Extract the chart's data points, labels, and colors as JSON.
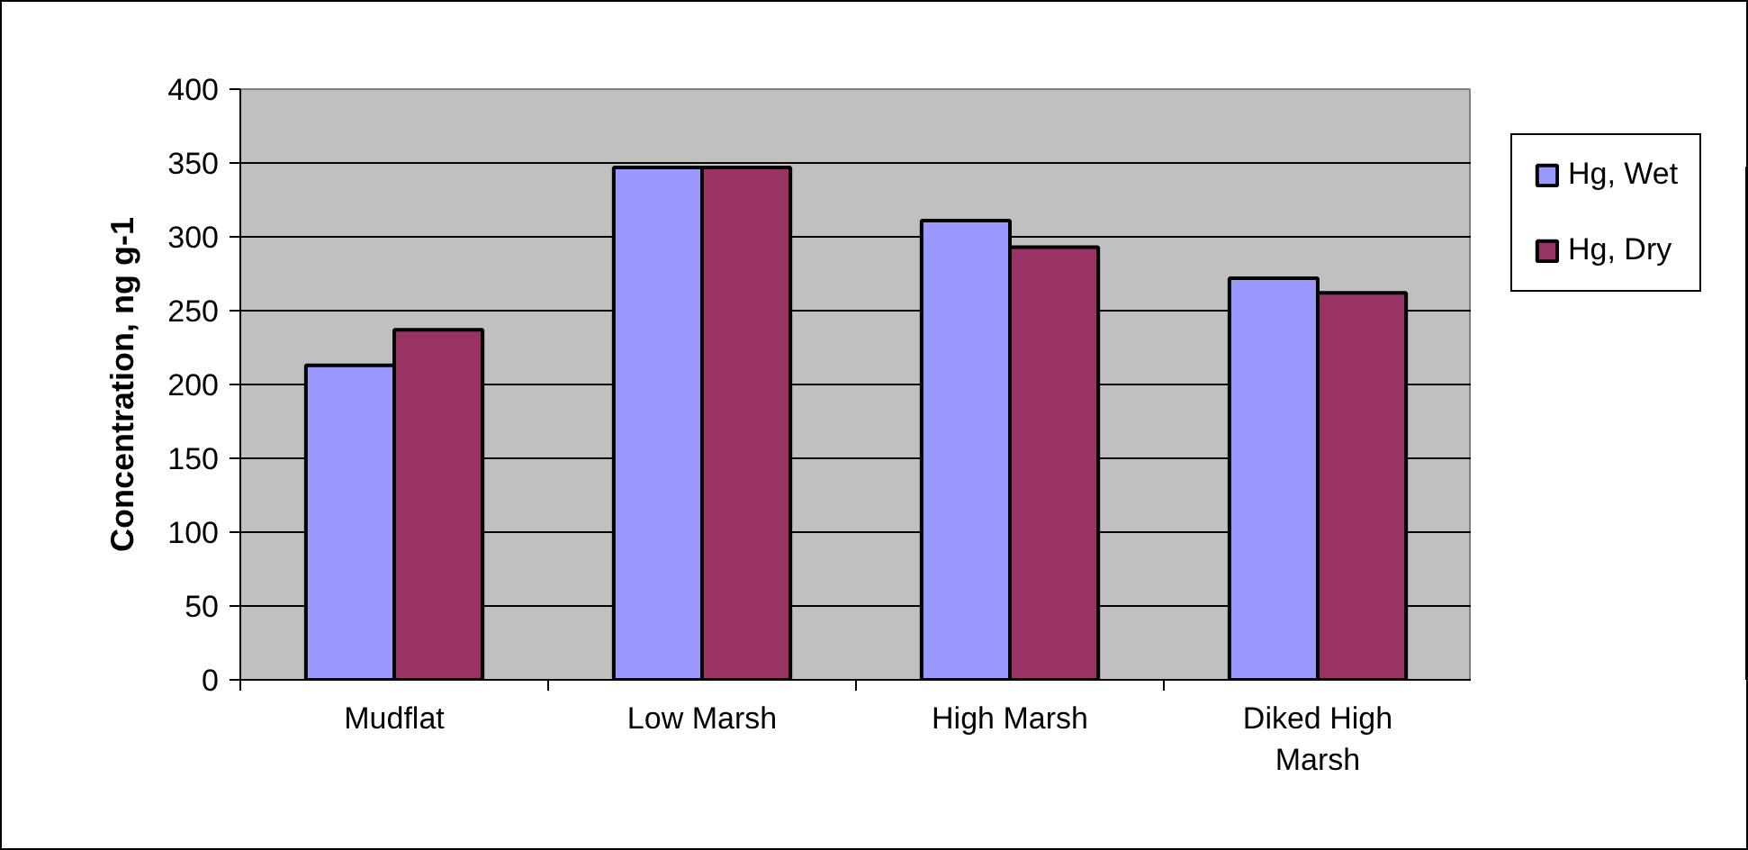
{
  "chart_data": {
    "type": "bar",
    "ylabel": "Concentration, ng g-1",
    "categories": [
      "Mudflat",
      "Low Marsh",
      "High Marsh",
      "Diked High Marsh"
    ],
    "series": [
      {
        "name": "Hg, Wet",
        "color": "#9999ff",
        "values": [
          213,
          347,
          311,
          272
        ]
      },
      {
        "name": "Hg, Dry",
        "color": "#993366",
        "values": [
          237,
          347,
          293,
          262
        ]
      }
    ],
    "ylim": [
      0,
      400
    ],
    "yticks": [
      0,
      50,
      100,
      150,
      200,
      250,
      300,
      350,
      400
    ],
    "grid": "y",
    "legend": "right"
  }
}
